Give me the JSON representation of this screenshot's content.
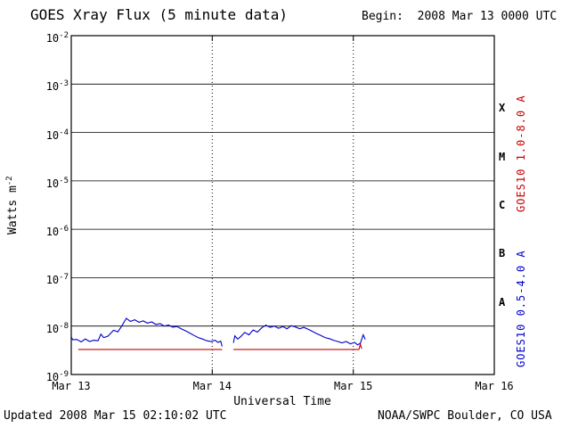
{
  "header": {
    "title": "GOES Xray Flux (5 minute data)",
    "begin": "Begin:  2008 Mar 13 0000 UTC"
  },
  "footer": {
    "updated": "Updated 2008 Mar 15 02:10:02 UTC",
    "credit": "NOAA/SWPC Boulder, CO USA"
  },
  "chart_data": {
    "type": "line",
    "title": "GOES Xray Flux (5 minute data)",
    "xlabel": "Universal Time",
    "ylabel_base": "Watts m",
    "ylabel_exp": "-2",
    "x_range_days": [
      0,
      3
    ],
    "y_exp_range": [
      -2,
      -9
    ],
    "y_tick_exponents": [
      -2,
      -3,
      -4,
      -5,
      -6,
      -7,
      -8,
      -9
    ],
    "x_ticks": [
      {
        "label": "Mar 13",
        "day": 0
      },
      {
        "label": "Mar 14",
        "day": 1
      },
      {
        "label": "Mar 15",
        "day": 2
      },
      {
        "label": "Mar 16",
        "day": 3
      }
    ],
    "flare_classes": [
      {
        "label": "X",
        "exp": -3.5
      },
      {
        "label": "M",
        "exp": -4.5
      },
      {
        "label": "C",
        "exp": -5.5
      },
      {
        "label": "B",
        "exp": -6.5
      },
      {
        "label": "A",
        "exp": -7.5
      }
    ],
    "grid": {
      "h_exponents": [
        -3,
        -4,
        -5,
        -6,
        -7,
        -8
      ],
      "v_days": [
        1,
        2
      ]
    },
    "series": [
      {
        "name": "GOES10 1.0-8.0 A",
        "color": "#c80000",
        "segments": [
          [
            [
              0.05,
              3.3e-09
            ],
            [
              1.07,
              3.3e-09
            ]
          ],
          [
            [
              1.15,
              3.3e-09
            ],
            [
              2.04,
              3.3e-09
            ],
            [
              2.05,
              4.2e-09
            ],
            [
              2.06,
              3.4e-09
            ]
          ]
        ]
      },
      {
        "name": "GOES10 0.5-4.0 A",
        "color": "#0000c8",
        "segments": [
          [
            [
              0.0,
              6e-09
            ],
            [
              0.01,
              5.2e-09
            ],
            [
              0.04,
              5.3e-09
            ],
            [
              0.07,
              4.7e-09
            ],
            [
              0.1,
              5.4e-09
            ],
            [
              0.13,
              4.8e-09
            ],
            [
              0.16,
              5.1e-09
            ],
            [
              0.19,
              5e-09
            ],
            [
              0.21,
              6.8e-09
            ],
            [
              0.23,
              5.8e-09
            ],
            [
              0.26,
              6.2e-09
            ],
            [
              0.3,
              8.2e-09
            ],
            [
              0.33,
              7.6e-09
            ],
            [
              0.36,
              1.02e-08
            ],
            [
              0.39,
              1.45e-08
            ],
            [
              0.42,
              1.25e-08
            ],
            [
              0.45,
              1.35e-08
            ],
            [
              0.48,
              1.2e-08
            ],
            [
              0.51,
              1.28e-08
            ],
            [
              0.54,
              1.15e-08
            ],
            [
              0.57,
              1.22e-08
            ],
            [
              0.6,
              1.08e-08
            ],
            [
              0.63,
              1.12e-08
            ],
            [
              0.66,
              1e-08
            ],
            [
              0.69,
              1.05e-08
            ],
            [
              0.72,
              9.5e-09
            ],
            [
              0.75,
              9.8e-09
            ],
            [
              0.78,
              8.8e-09
            ],
            [
              0.81,
              8e-09
            ],
            [
              0.84,
              7.2e-09
            ],
            [
              0.87,
              6.4e-09
            ],
            [
              0.9,
              5.8e-09
            ],
            [
              0.93,
              5.4e-09
            ],
            [
              0.96,
              5e-09
            ],
            [
              0.99,
              4.8e-09
            ],
            [
              1.02,
              5.1e-09
            ],
            [
              1.04,
              4.6e-09
            ],
            [
              1.06,
              4.9e-09
            ],
            [
              1.07,
              3.8e-09
            ]
          ],
          [
            [
              1.15,
              4.5e-09
            ],
            [
              1.16,
              6.3e-09
            ],
            [
              1.18,
              5.4e-09
            ],
            [
              1.2,
              6e-09
            ],
            [
              1.23,
              7.4e-09
            ],
            [
              1.26,
              6.6e-09
            ],
            [
              1.29,
              8.3e-09
            ],
            [
              1.32,
              7.5e-09
            ],
            [
              1.35,
              9.2e-09
            ],
            [
              1.38,
              1.05e-08
            ],
            [
              1.41,
              9.4e-09
            ],
            [
              1.44,
              1e-08
            ],
            [
              1.47,
              9e-09
            ],
            [
              1.5,
              9.8e-09
            ],
            [
              1.53,
              8.8e-09
            ],
            [
              1.56,
              1.02e-08
            ],
            [
              1.59,
              9.6e-09
            ],
            [
              1.62,
              8.8e-09
            ],
            [
              1.65,
              9.4e-09
            ],
            [
              1.68,
              8.6e-09
            ],
            [
              1.71,
              7.8e-09
            ],
            [
              1.74,
              7e-09
            ],
            [
              1.77,
              6.4e-09
            ],
            [
              1.8,
              5.8e-09
            ],
            [
              1.83,
              5.5e-09
            ],
            [
              1.86,
              5.1e-09
            ],
            [
              1.89,
              4.8e-09
            ],
            [
              1.92,
              4.5e-09
            ],
            [
              1.95,
              4.8e-09
            ],
            [
              1.98,
              4.3e-09
            ],
            [
              2.01,
              4.6e-09
            ],
            [
              2.03,
              4.1e-09
            ],
            [
              2.05,
              4.4e-09
            ],
            [
              2.07,
              6.6e-09
            ],
            [
              2.085,
              5.3e-09
            ]
          ]
        ]
      }
    ]
  }
}
